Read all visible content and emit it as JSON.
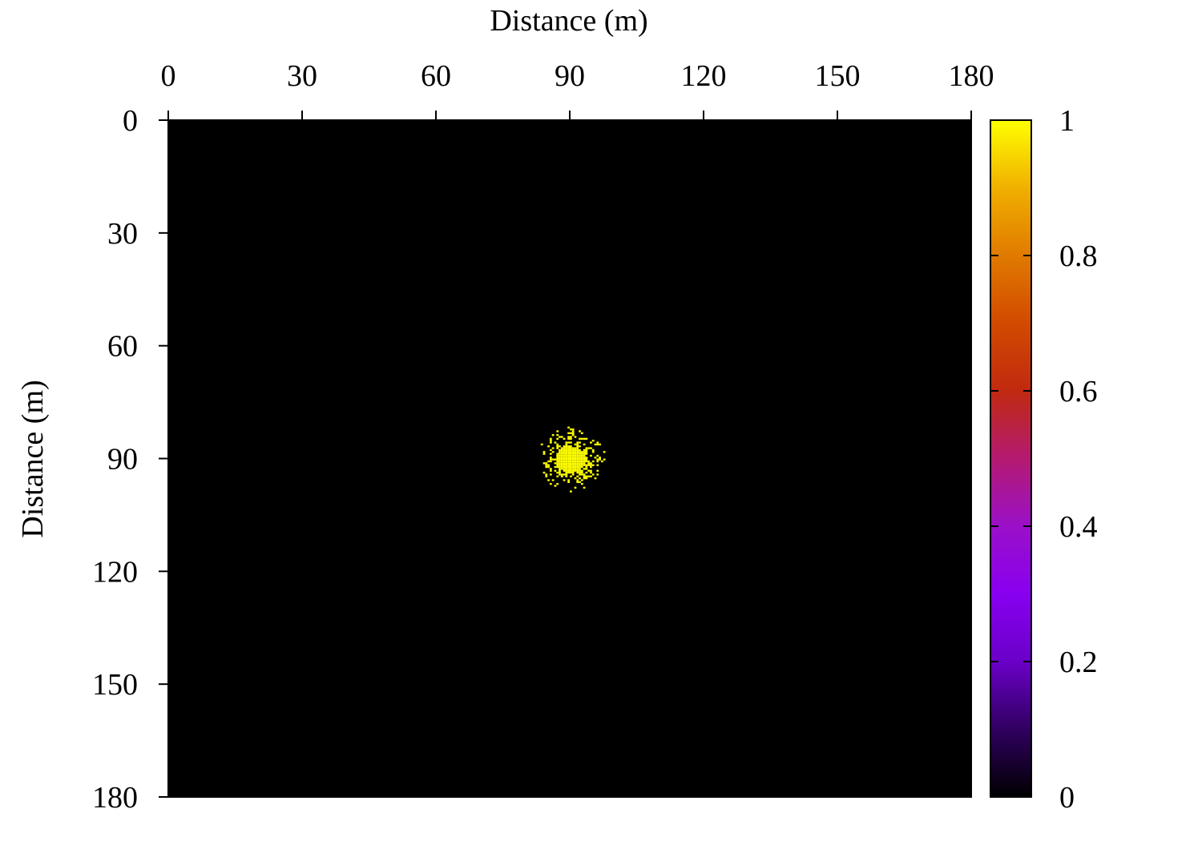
{
  "chart_data": {
    "type": "heatmap",
    "title": "",
    "xlabel": "Distance (m)",
    "ylabel": "Distance (m)",
    "x_axis_position": "top",
    "y_axis_inverted": true,
    "xlim": [
      0,
      180
    ],
    "ylim": [
      0,
      180
    ],
    "x_ticks": [
      "0",
      "30",
      "60",
      "90",
      "120",
      "150",
      "180"
    ],
    "y_ticks": [
      "0",
      "30",
      "60",
      "90",
      "120",
      "150",
      "180"
    ],
    "grid": false,
    "background_value": 0,
    "cell_size_m": 1,
    "cluster": {
      "value": 1,
      "center": [
        90,
        90
      ],
      "core_radius": 3.5,
      "extent_x": [
        81,
        99
      ],
      "extent_y": [
        80,
        100
      ]
    },
    "colorbar": {
      "min": 0,
      "max": 1,
      "ticks": [
        "0",
        "0.2",
        "0.4",
        "0.6",
        "0.8",
        "1"
      ],
      "placement": "right",
      "colormap": [
        "#000000",
        "#300060",
        "#6a00c8",
        "#8800f0",
        "#9a10c8",
        "#b41a70",
        "#c02a10",
        "#d24a00",
        "#e07a00",
        "#f0b000",
        "#ffff00"
      ]
    },
    "colors": {
      "background": "#000000",
      "cluster": "#ffff00"
    }
  }
}
